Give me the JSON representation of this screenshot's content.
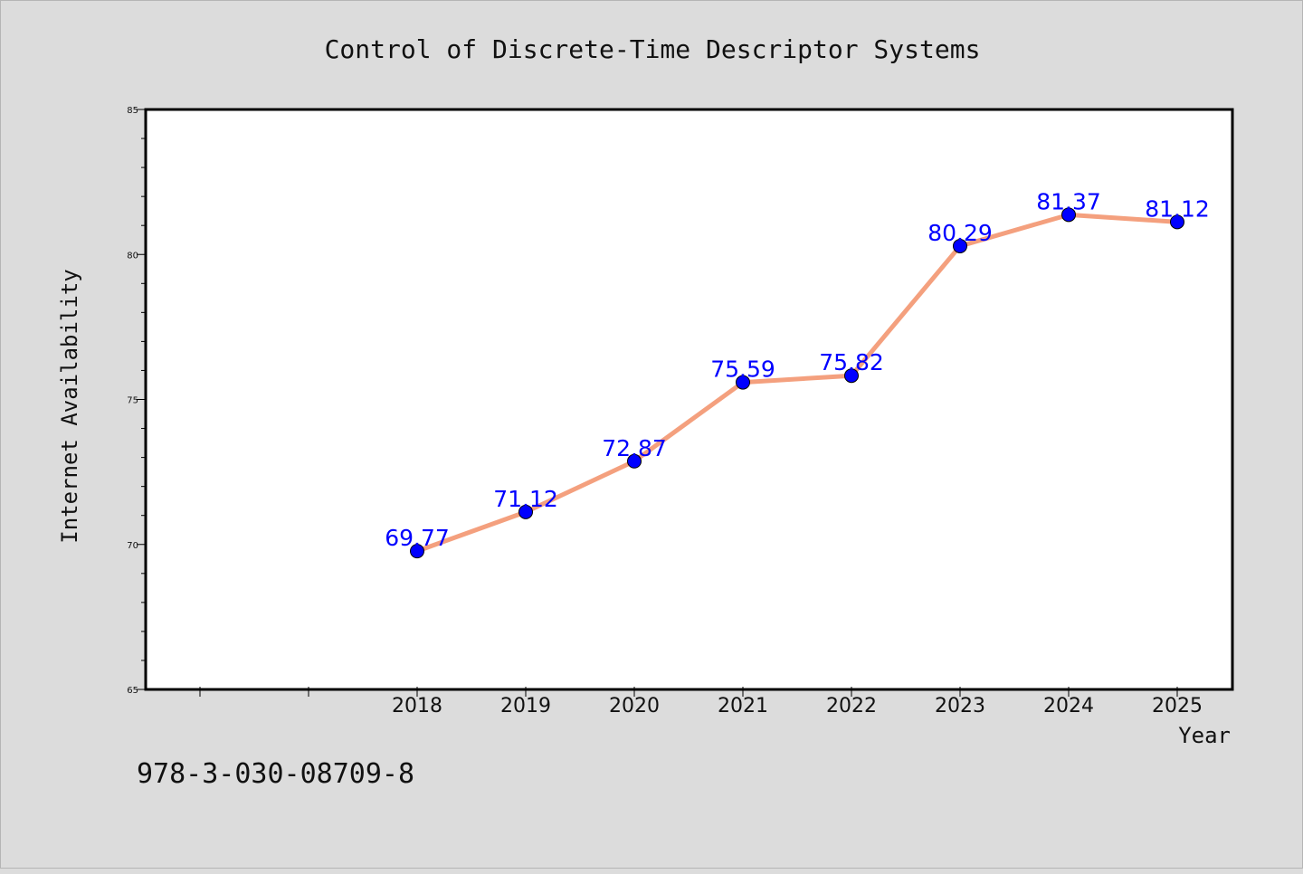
{
  "chart_data": {
    "type": "line",
    "title": "Control of Discrete-Time Descriptor Systems",
    "xlabel": "Year",
    "ylabel": "Internet Availability",
    "categories": [
      "2018",
      "2019",
      "2020",
      "2021",
      "2022",
      "2023",
      "2024",
      "2025"
    ],
    "series": [
      {
        "values": [
          69.77,
          71.12,
          72.87,
          75.59,
          75.82,
          80.29,
          81.37,
          81.12
        ],
        "labels": [
          "69.77",
          "71.12",
          "72.87",
          "75.59",
          "75.82",
          "80.29",
          "81.37",
          "81.12"
        ]
      }
    ],
    "ylim": [
      65,
      85
    ],
    "yticks": [
      "65",
      "70",
      "75",
      "80",
      "85"
    ],
    "grid": false,
    "line_color": "#f4a07e",
    "marker_color": "#0000ff",
    "label_color": "#0000ff"
  },
  "footer": {
    "isbn": "978-3-030-08709-8"
  }
}
